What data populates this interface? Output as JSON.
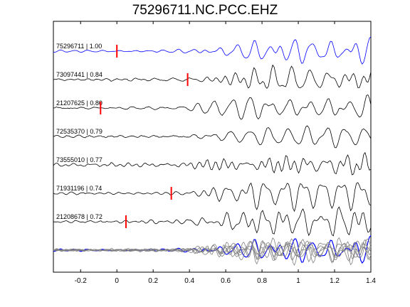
{
  "chart_data": {
    "type": "line",
    "title": "75296711.NC.PCC.EHZ",
    "xlim": [
      -0.35,
      1.4
    ],
    "xticks": [
      -0.2,
      0,
      0.2,
      0.4,
      0.6,
      0.8,
      1,
      1.2,
      1.4
    ],
    "xtick_labels": [
      "-0.2",
      "0",
      "0.2",
      "0.4",
      "0.6",
      "0.8",
      "1",
      "1.2",
      "1.4"
    ],
    "grid": false,
    "colors": {
      "reference": "#0000ff",
      "trace": "#000000",
      "pick": "#ff0000",
      "stack": "#808080"
    },
    "series": [
      {
        "label": "75296711 | 1.00",
        "pick": 0.0,
        "ref": true
      },
      {
        "label": "73097441 | 0.84",
        "pick": 0.39
      },
      {
        "label": "21207625 | 0.80",
        "pick": -0.09
      },
      {
        "label": "72535370 | 0.79",
        "pick": null
      },
      {
        "label": "73555010 | 0.77",
        "pick": null
      },
      {
        "label": "71931196 | 0.74",
        "pick": 0.3
      },
      {
        "label": "21208678 | 0.72",
        "pick": 0.05
      }
    ],
    "stack": true
  }
}
